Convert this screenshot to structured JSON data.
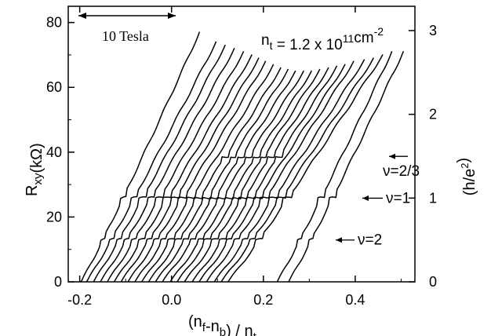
{
  "chart_data": {
    "type": "line",
    "xlabel": "(n_f-n_b) / n_t",
    "ylabel_left": "R_xy(kΩ)",
    "ylabel_right": "(h/e^2)",
    "xlim": [
      -0.225,
      0.53
    ],
    "ylim_left": [
      0,
      85
    ],
    "ylim_right": [
      0,
      3.29
    ],
    "x_ticks": [
      -0.2,
      0.0,
      0.2,
      0.4
    ],
    "x_tick_labels": [
      "-0.2",
      "0.0",
      "0.2",
      "0.4"
    ],
    "y_ticks_left": [
      0,
      20,
      40,
      60,
      80
    ],
    "y_tick_labels_left": [
      "0",
      "20",
      "40",
      "60",
      "80"
    ],
    "y_ticks_right": [
      0,
      1,
      2,
      3
    ],
    "y_tick_labels_right": [
      "0",
      "1",
      "2",
      "3"
    ],
    "grid": false,
    "density_label": "n_t = 1.2 x 10^11 cm^-2",
    "scale_bar_label": "10 Tesla",
    "annotations": [
      {
        "text": "ν=2/3",
        "y": 38.7
      },
      {
        "text": "ν=1",
        "y": 25.8
      },
      {
        "text": "ν=2",
        "y": 12.9
      }
    ],
    "plateaus": [
      {
        "nu": "1",
        "value": 25.8
      },
      {
        "nu": "2",
        "value": 12.9
      },
      {
        "nu": "2/3",
        "value": 38.7
      }
    ],
    "series": [
      {
        "x_start": -0.197,
        "x_end": 0.061,
        "y_end": 77
      },
      {
        "x_start": -0.185,
        "x_end": 0.097,
        "y_end": 74
      },
      {
        "x_start": -0.17,
        "x_end": 0.117,
        "y_end": 73
      },
      {
        "x_start": -0.155,
        "x_end": 0.137,
        "y_end": 72
      },
      {
        "x_start": -0.14,
        "x_end": 0.157,
        "y_end": 71
      },
      {
        "x_start": -0.125,
        "x_end": 0.175,
        "y_end": 70
      },
      {
        "x_start": -0.11,
        "x_end": 0.19,
        "y_end": 69
      },
      {
        "x_start": -0.095,
        "x_end": 0.205,
        "y_end": 68
      },
      {
        "x_start": -0.08,
        "x_end": 0.222,
        "y_end": 67
      },
      {
        "x_start": -0.065,
        "x_end": 0.238,
        "y_end": 66
      },
      {
        "x_start": -0.05,
        "x_end": 0.254,
        "y_end": 65.5
      },
      {
        "x_start": -0.035,
        "x_end": 0.27,
        "y_end": 65
      },
      {
        "x_start": -0.02,
        "x_end": 0.288,
        "y_end": 65
      },
      {
        "x_start": -0.003,
        "x_end": 0.305,
        "y_end": 65
      },
      {
        "x_start": 0.012,
        "x_end": 0.323,
        "y_end": 65.5
      },
      {
        "x_start": 0.028,
        "x_end": 0.342,
        "y_end": 66
      },
      {
        "x_start": 0.045,
        "x_end": 0.36,
        "y_end": 66.5
      },
      {
        "x_start": 0.06,
        "x_end": 0.378,
        "y_end": 67
      },
      {
        "x_start": 0.076,
        "x_end": 0.397,
        "y_end": 68
      },
      {
        "x_start": 0.093,
        "x_end": 0.42,
        "y_end": 68.5
      },
      {
        "x_start": 0.108,
        "x_end": 0.44,
        "y_end": 69
      },
      {
        "x_start": 0.123,
        "x_end": 0.46,
        "y_end": 70
      },
      {
        "x_start": 0.23,
        "x_end": 0.48,
        "y_end": 71
      },
      {
        "x_start": 0.255,
        "x_end": 0.505,
        "y_end": 71
      }
    ]
  }
}
